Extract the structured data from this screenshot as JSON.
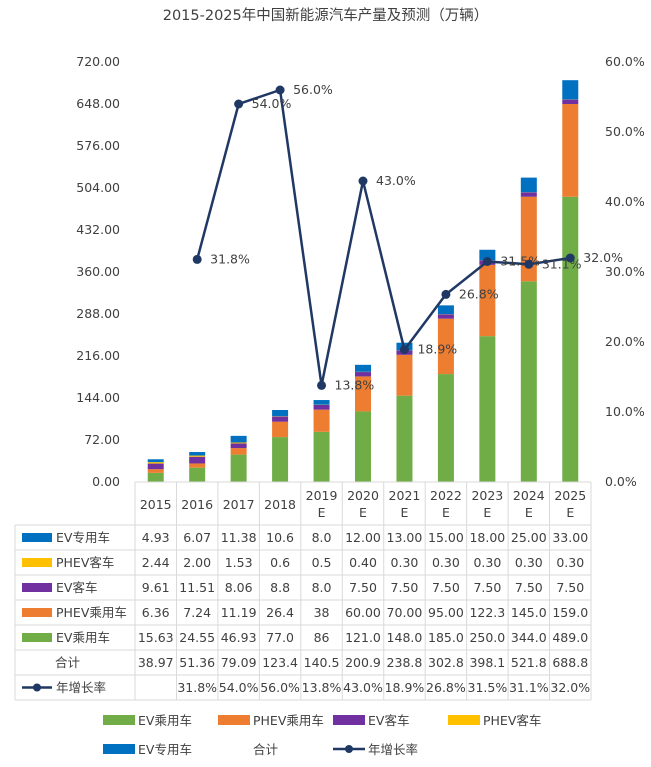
{
  "chart_data": {
    "type": "bar",
    "stacked": true,
    "title": "2015-2025年中国新能源汽车产量及预测（万辆）",
    "categories": [
      "2015",
      "2016",
      "2017",
      "2018",
      "2019\nE",
      "2020\nE",
      "2021\nE",
      "2022\nE",
      "2023\nE",
      "2024\nE",
      "2025\nE"
    ],
    "ylim": [
      0,
      720
    ],
    "yticks": [
      "0.00",
      "72.00",
      "144.00",
      "216.00",
      "288.00",
      "360.00",
      "432.00",
      "504.00",
      "576.00",
      "648.00",
      "720.00"
    ],
    "y2lim": [
      0,
      60
    ],
    "y2ticks": [
      "0.0%",
      "10.0%",
      "20.0%",
      "30.0%",
      "40.0%",
      "50.0%",
      "60.0%"
    ],
    "grid": false,
    "legend_position": "bottom",
    "series": [
      {
        "name": "EV乘用车",
        "color": "#70ad47",
        "values": [
          15.63,
          24.55,
          46.93,
          77.0,
          86,
          121.0,
          148.0,
          185.0,
          250.0,
          344.0,
          489.0
        ],
        "labels": [
          "15.63",
          "24.55",
          "46.93",
          "77.0",
          "86",
          "121.0",
          "148.0",
          "185.0",
          "250.0",
          "344.0",
          "489.0"
        ]
      },
      {
        "name": "PHEV乘用车",
        "color": "#ed7d31",
        "values": [
          6.36,
          7.24,
          11.19,
          26.4,
          38,
          60.0,
          70.0,
          95.0,
          122.3,
          145.0,
          159.0
        ],
        "labels": [
          "6.36",
          "7.24",
          "11.19",
          "26.4",
          "38",
          "60.00",
          "70.00",
          "95.00",
          "122.3",
          "145.0",
          "159.0"
        ]
      },
      {
        "name": "EV客车",
        "color": "#7030a0",
        "values": [
          9.61,
          11.51,
          8.06,
          8.8,
          8.0,
          7.5,
          7.5,
          7.5,
          7.5,
          7.5,
          7.5
        ],
        "labels": [
          "9.61",
          "11.51",
          "8.06",
          "8.8",
          "8.0",
          "7.50",
          "7.50",
          "7.50",
          "7.50",
          "7.50",
          "7.50"
        ]
      },
      {
        "name": "PHEV客车",
        "color": "#ffc000",
        "values": [
          2.44,
          2.0,
          1.53,
          0.6,
          0.5,
          0.4,
          0.3,
          0.3,
          0.3,
          0.3,
          0.3
        ],
        "labels": [
          "2.44",
          "2.00",
          "1.53",
          "0.6",
          "0.5",
          "0.40",
          "0.30",
          "0.30",
          "0.30",
          "0.30",
          "0.30"
        ]
      },
      {
        "name": "EV专用车",
        "color": "#0070c0",
        "values": [
          4.93,
          6.07,
          11.38,
          10.6,
          8.0,
          12.0,
          13.0,
          15.0,
          18.0,
          25.0,
          33.0
        ],
        "labels": [
          "4.93",
          "6.07",
          "11.38",
          "10.6",
          "8.0",
          "12.00",
          "13.00",
          "15.00",
          "18.00",
          "25.00",
          "33.00"
        ]
      }
    ],
    "total": {
      "name": "合计",
      "labels": [
        "38.97",
        "51.36",
        "79.09",
        "123.4",
        "140.5",
        "200.9",
        "238.8",
        "302.8",
        "398.1",
        "521.8",
        "688.8"
      ]
    },
    "growth": {
      "name": "年增长率",
      "color": "#203864",
      "values": [
        null,
        31.8,
        54.0,
        56.0,
        13.8,
        43.0,
        18.9,
        26.8,
        31.5,
        31.1,
        32.0
      ],
      "labels": [
        "",
        "31.8%",
        "54.0%",
        "56.0%",
        "13.8%",
        "43.0%",
        "18.9%",
        "26.8%",
        "31.5%",
        "31.1%",
        "32.0%"
      ]
    },
    "table_row_order": [
      "EV专用车",
      "PHEV客车",
      "EV客车",
      "PHEV乘用车",
      "EV乘用车",
      "合计",
      "年增长率"
    ],
    "legend_items": [
      "EV乘用车",
      "PHEV乘用车",
      "EV客车",
      "PHEV客车",
      "EV专用车",
      "合计",
      "年增长率"
    ]
  }
}
